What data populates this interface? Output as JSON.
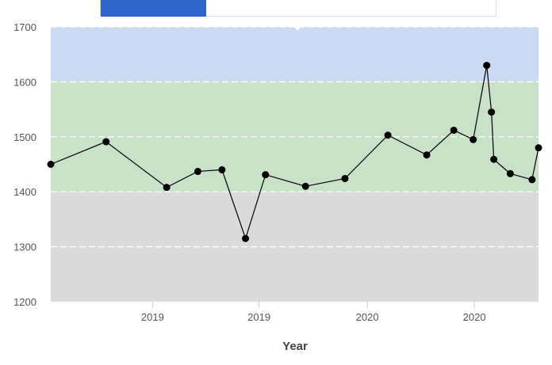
{
  "chart_data": {
    "type": "line",
    "xlabel": "Year",
    "ylabel": "",
    "ylim": [
      1200,
      1700
    ],
    "yticks": [
      1200,
      1300,
      1400,
      1500,
      1600,
      1700
    ],
    "xlim": [
      "2018-07-12",
      "2020-10-18"
    ],
    "xtick_dates": [
      "2019-01-01",
      "2019-07-01",
      "2020-01-01",
      "2020-07-01"
    ],
    "xtick_labels": [
      "2019",
      "2019",
      "2020",
      "2020"
    ],
    "grid": true,
    "bands": [
      {
        "from": 1200,
        "to": 1400,
        "color": "#dadada"
      },
      {
        "from": 1400,
        "to": 1600,
        "color": "#c8e1c8"
      },
      {
        "from": 1600,
        "to": 1700,
        "color": "#ccd9f2"
      }
    ],
    "line_color": "#000000",
    "marker_color": "#000000",
    "series": [
      {
        "points": [
          {
            "x": "2018-07-12",
            "y": 1450
          },
          {
            "x": "2018-10-14",
            "y": 1491
          },
          {
            "x": "2019-01-25",
            "y": 1408
          },
          {
            "x": "2019-03-19",
            "y": 1437
          },
          {
            "x": "2019-04-29",
            "y": 1440
          },
          {
            "x": "2019-06-08",
            "y": 1315
          },
          {
            "x": "2019-07-12",
            "y": 1431
          },
          {
            "x": "2019-09-18",
            "y": 1410
          },
          {
            "x": "2019-11-24",
            "y": 1424
          },
          {
            "x": "2020-02-05",
            "y": 1503
          },
          {
            "x": "2020-04-11",
            "y": 1467
          },
          {
            "x": "2020-05-27",
            "y": 1512
          },
          {
            "x": "2020-06-29",
            "y": 1495
          },
          {
            "x": "2020-07-22",
            "y": 1630
          },
          {
            "x": "2020-07-30",
            "y": 1545
          },
          {
            "x": "2020-08-03",
            "y": 1459
          },
          {
            "x": "2020-08-31",
            "y": 1433
          },
          {
            "x": "2020-10-07",
            "y": 1422
          },
          {
            "x": "2020-10-18",
            "y": 1480
          }
        ]
      }
    ]
  },
  "axis_labels": {
    "x": "Year"
  }
}
